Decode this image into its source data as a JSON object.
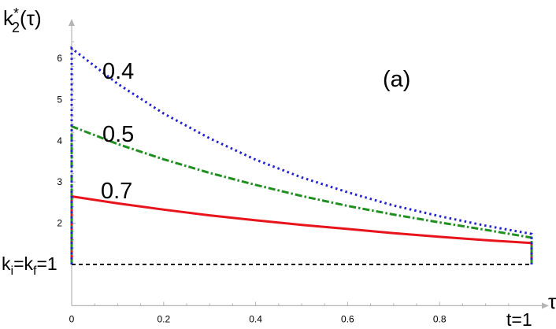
{
  "chart_data": {
    "type": "line",
    "title": "",
    "panel_label": "(a)",
    "ylabel_base": "k",
    "ylabel_sup": "*",
    "ylabel_sub": "2",
    "ylabel_arg": "(τ)",
    "xlabel": "τ",
    "x_end_label": "t=1",
    "ref_label": {
      "ki": "k",
      "ki_sub": "i",
      "eq1": "=",
      "kf": "k",
      "kf_sub": "f",
      "eq2": "=1"
    },
    "xlim": [
      0,
      1
    ],
    "ylim": [
      0,
      6.8
    ],
    "x_ticks": [
      "0",
      "0.2",
      "0.4",
      "0.6",
      "0.8"
    ],
    "y_ticks": [
      "2",
      "3",
      "4",
      "5",
      "6"
    ],
    "grid": false,
    "series": [
      {
        "name": "0.4",
        "style": "dotted",
        "color": "#1f1fd6",
        "x": [
          0,
          0.1,
          0.2,
          0.3,
          0.4,
          0.5,
          0.6,
          0.7,
          0.8,
          0.9,
          1.0
        ],
        "y": [
          6.24,
          5.38,
          4.66,
          4.06,
          3.54,
          3.11,
          2.75,
          2.43,
          2.17,
          1.94,
          1.74
        ]
      },
      {
        "name": "0.5",
        "style": "dashdot",
        "color": "#1f8f1f",
        "x": [
          0,
          0.1,
          0.2,
          0.3,
          0.4,
          0.5,
          0.6,
          0.7,
          0.8,
          0.9,
          1.0
        ],
        "y": [
          4.35,
          3.92,
          3.55,
          3.22,
          2.93,
          2.66,
          2.42,
          2.21,
          2.02,
          1.84,
          1.65
        ]
      },
      {
        "name": "0.7",
        "style": "solid",
        "color": "#e8141c",
        "x": [
          0,
          0.1,
          0.2,
          0.3,
          0.4,
          0.5,
          0.6,
          0.7,
          0.8,
          0.9,
          1.0
        ],
        "y": [
          2.65,
          2.48,
          2.33,
          2.19,
          2.07,
          1.96,
          1.86,
          1.76,
          1.67,
          1.59,
          1.52
        ]
      }
    ],
    "reference_line": {
      "y": 1,
      "style": "dashed",
      "color": "#000000"
    }
  }
}
